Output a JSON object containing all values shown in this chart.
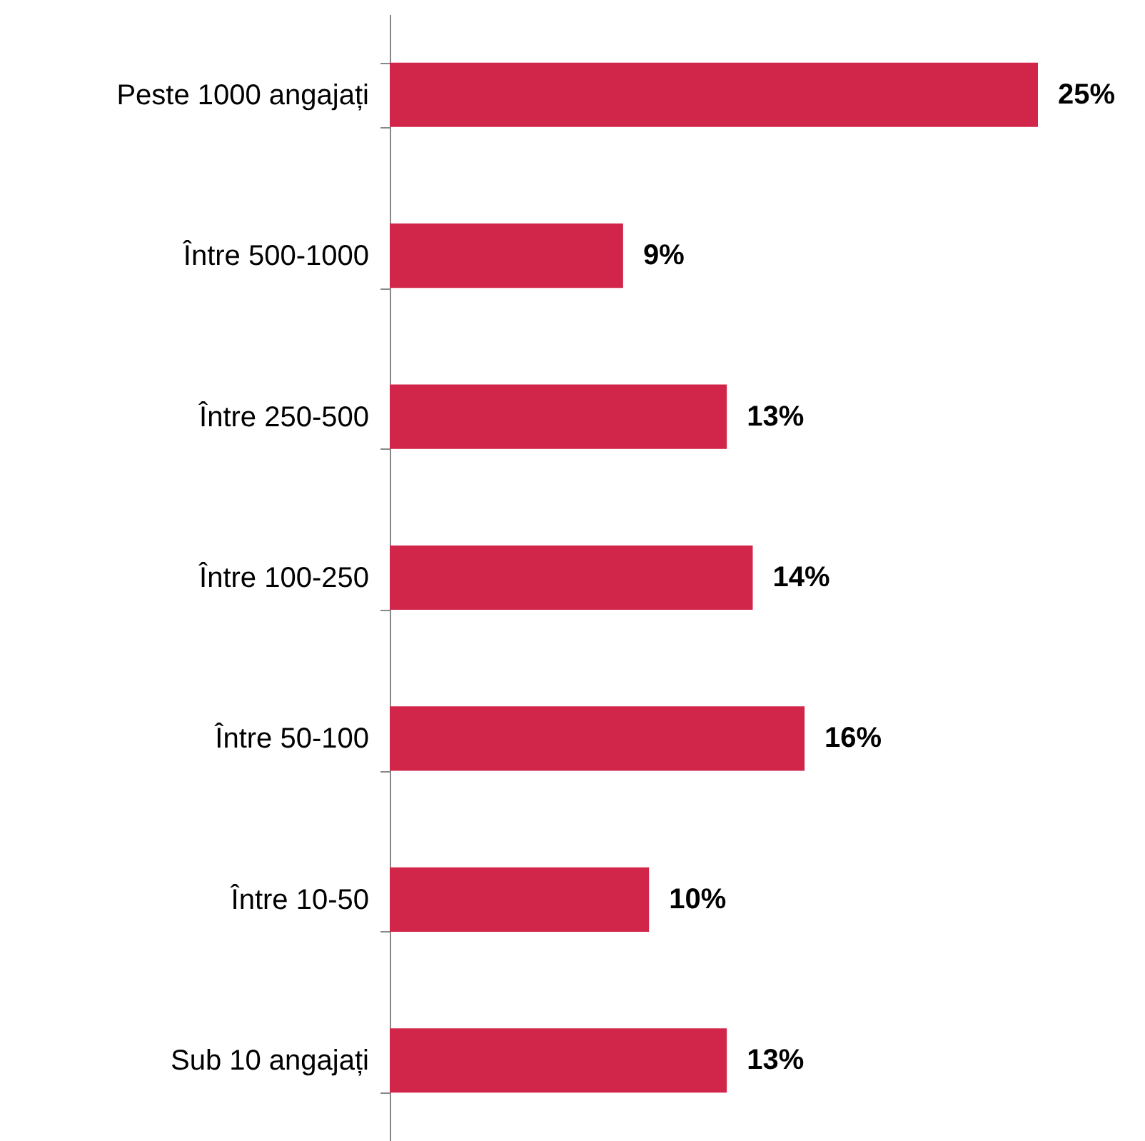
{
  "chart_data": {
    "type": "bar",
    "orientation": "horizontal",
    "categories": [
      "Peste 1000 angajați",
      "Între 500-1000",
      "Între 250-500",
      "Între 100-250",
      "Între 50-100",
      "Între 10-50",
      "Sub 10 angajați"
    ],
    "values": [
      25,
      9,
      13,
      14,
      16,
      10,
      13
    ],
    "color": "#d2254a",
    "value_labels": [
      "25%",
      "9%",
      "13%",
      "14%",
      "16%",
      "10%",
      "13%"
    ]
  }
}
